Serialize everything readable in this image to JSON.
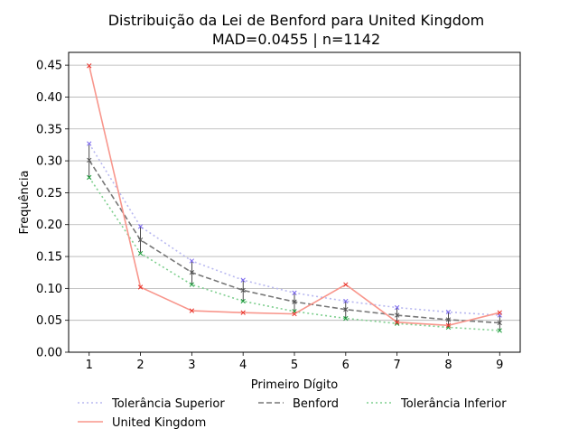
{
  "chart_data": {
    "type": "line",
    "title": "Distribuição da Lei de Benford para United Kingdom",
    "subtitle": "MAD=0.0455 | n=1142",
    "xlabel": "Primeiro Dígito",
    "ylabel": "Frequência",
    "x": [
      1,
      2,
      3,
      4,
      5,
      6,
      7,
      8,
      9
    ],
    "xlim": [
      0.6,
      9.4
    ],
    "ylim": [
      0,
      0.47
    ],
    "yticks": [
      0.0,
      0.05,
      0.1,
      0.15,
      0.2,
      0.25,
      0.3,
      0.35,
      0.4,
      0.45
    ],
    "ytick_labels": [
      "0.00",
      "0.05",
      "0.10",
      "0.15",
      "0.20",
      "0.25",
      "0.30",
      "0.35",
      "0.40",
      "0.45"
    ],
    "grid": "horizontal",
    "legend_placement": "bottom",
    "series": [
      {
        "name": "Tolerância Superior",
        "color": "#b8b8f0",
        "dash": "dotted",
        "marker": "x",
        "marker_color": "#7b68ee",
        "values": [
          0.327,
          0.197,
          0.143,
          0.113,
          0.093,
          0.08,
          0.07,
          0.063,
          0.058
        ]
      },
      {
        "name": "Benford",
        "color": "#777777",
        "dash": "dashed",
        "marker": "x",
        "marker_color": "#555555",
        "values": [
          0.301,
          0.176,
          0.125,
          0.097,
          0.079,
          0.067,
          0.058,
          0.051,
          0.046
        ]
      },
      {
        "name": "Tolerância Inferior",
        "color": "#7fcf8f",
        "dash": "dotted",
        "marker": "x",
        "marker_color": "#1a9c3a",
        "values": [
          0.274,
          0.155,
          0.106,
          0.08,
          0.064,
          0.053,
          0.045,
          0.039,
          0.034
        ]
      },
      {
        "name": "United Kingdom",
        "color": "#f8968c",
        "dash": "solid",
        "marker": "x",
        "marker_color": "#e8332a",
        "values": [
          0.449,
          0.102,
          0.065,
          0.062,
          0.06,
          0.106,
          0.047,
          0.042,
          0.062
        ]
      }
    ],
    "error_bars": {
      "color": "#000000",
      "lower": [
        0.274,
        0.155,
        0.106,
        0.08,
        0.064,
        0.053,
        0.045,
        0.039,
        0.034
      ],
      "upper": [
        0.327,
        0.197,
        0.143,
        0.113,
        0.093,
        0.08,
        0.07,
        0.063,
        0.058
      ]
    },
    "legend": {
      "row1": [
        "Tolerância Superior",
        "Benford",
        "Tolerância Inferior"
      ],
      "row2": [
        "United Kingdom"
      ]
    }
  }
}
